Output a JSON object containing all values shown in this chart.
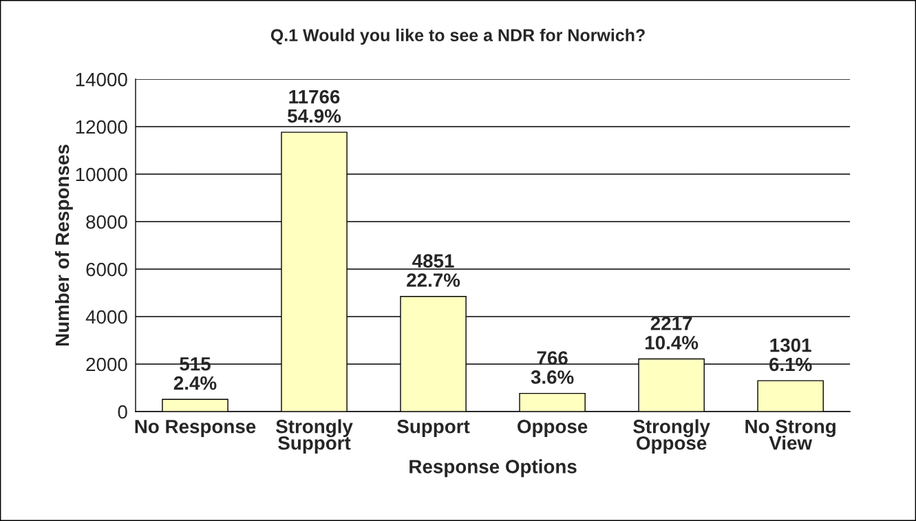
{
  "chart_data": {
    "type": "bar",
    "title": "Q.1 Would you like to see a NDR for Norwich?",
    "xlabel": "Response Options",
    "ylabel": "Number of Responses",
    "categories": [
      "No Response",
      "Strongly\nSupport",
      "Support",
      "Oppose",
      "Strongly\nOppose",
      "No Strong\nView"
    ],
    "values": [
      515,
      11766,
      4851,
      766,
      2217,
      1301
    ],
    "value_labels": [
      "515\n2.4%",
      "11766\n54.9%",
      "4851\n22.7%",
      "766\n3.6%",
      "2217\n10.4%",
      "1301\n6.1%"
    ],
    "color": "#ffffc0",
    "ylim": [
      0,
      14000
    ],
    "yticks": [
      0,
      2000,
      4000,
      6000,
      8000,
      10000,
      12000,
      14000
    ],
    "grid": "y",
    "legend": false
  }
}
